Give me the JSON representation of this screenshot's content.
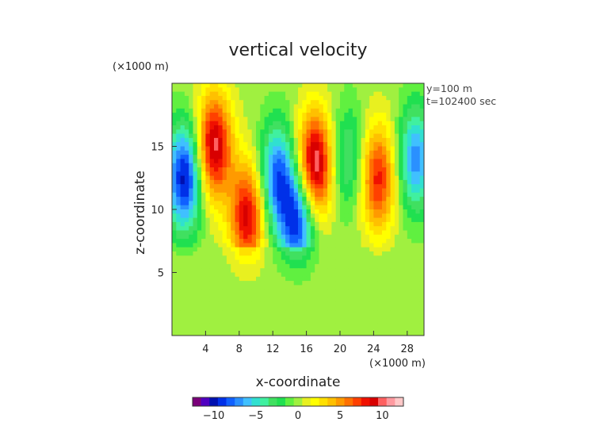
{
  "chart_data": {
    "type": "heatmap",
    "title": "vertical velocity",
    "xlabel": "x-coordinate",
    "ylabel": "z-coordinate",
    "x_unit": "(×1000 m)",
    "z_unit": "(×1000 m)",
    "annotations": [
      "y=100 m",
      "t=102400 sec"
    ],
    "xlim": [
      0,
      30
    ],
    "ylim": [
      0,
      20
    ],
    "x_ticks": [
      4,
      8,
      12,
      16,
      20,
      24,
      28
    ],
    "y_ticks": [
      5,
      10,
      15
    ],
    "x_tick_labels": [
      "4",
      "8",
      "12",
      "16",
      "20",
      "24",
      "28"
    ],
    "y_tick_labels": [
      "5",
      "10",
      "15"
    ],
    "colorbar": {
      "range": [
        -12.5,
        12.5
      ],
      "ticks": [
        -10,
        -5,
        0,
        5,
        10
      ],
      "tick_labels": [
        "−10",
        "−5",
        "0",
        "5",
        "10"
      ],
      "colors": [
        "#7a007a",
        "#5000c0",
        "#0010b0",
        "#0030e8",
        "#1060ff",
        "#2a90ff",
        "#40c0ff",
        "#30e0d0",
        "#40f0a0",
        "#40e060",
        "#20e050",
        "#60f040",
        "#a0f040",
        "#e8f020",
        "#ffff00",
        "#ffe000",
        "#ffc000",
        "#ff9a00",
        "#ff7000",
        "#ff4000",
        "#f01000",
        "#d80000",
        "#ff6060",
        "#ff9aa0",
        "#ffc8c8"
      ]
    },
    "features": [
      {
        "x": 1.5,
        "z": 12.5,
        "w": -10
      },
      {
        "x": 5.0,
        "z": 15.0,
        "w": 10
      },
      {
        "x": 9.0,
        "z": 9.5,
        "w": 9
      },
      {
        "x": 12.5,
        "z": 12.5,
        "w": -8
      },
      {
        "x": 15.0,
        "z": 9.0,
        "w": -9
      },
      {
        "x": 17.0,
        "z": 13.5,
        "w": 11
      },
      {
        "x": 21.0,
        "z": 14.0,
        "w": -4
      },
      {
        "x": 24.5,
        "z": 12.5,
        "w": 8
      },
      {
        "x": 29.0,
        "z": 14.0,
        "w": -7
      }
    ]
  }
}
